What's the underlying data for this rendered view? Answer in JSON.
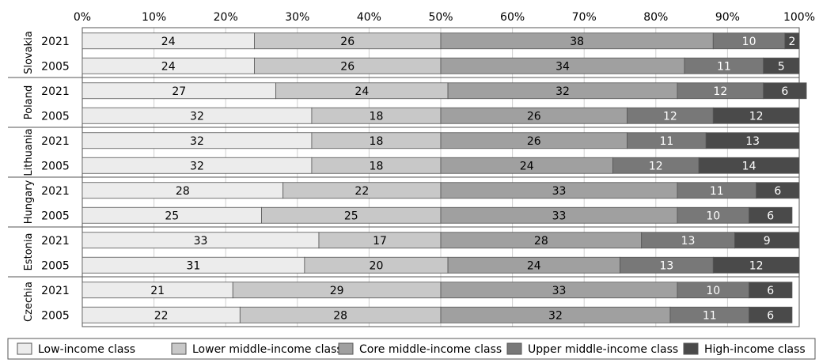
{
  "chart_data": {
    "type": "bar",
    "orientation": "horizontal",
    "stacked": true,
    "xlim": [
      0,
      100
    ],
    "x_ticks": [
      "0%",
      "10%",
      "20%",
      "30%",
      "40%",
      "50%",
      "60%",
      "70%",
      "80%",
      "90%",
      "100%"
    ],
    "grid": true,
    "legend_position": "bottom",
    "series": [
      {
        "name": "Low-income class",
        "color": "#ececec",
        "text_color": "#000000"
      },
      {
        "name": "Lower middle-income class",
        "color": "#c8c8c8",
        "text_color": "#000000"
      },
      {
        "name": "Core middle-income class",
        "color": "#a0a0a0",
        "text_color": "#000000"
      },
      {
        "name": "Upper middle-income class",
        "color": "#787878",
        "text_color": "#ffffff"
      },
      {
        "name": "High-income class",
        "color": "#4a4a4a",
        "text_color": "#ffffff"
      }
    ],
    "groups": [
      {
        "country": "Slovakia",
        "bars": [
          {
            "year": "2021",
            "values": [
              24,
              26,
              38,
              10,
              2
            ]
          },
          {
            "year": "2005",
            "values": [
              24,
              26,
              34,
              11,
              5
            ]
          }
        ]
      },
      {
        "country": "Poland",
        "bars": [
          {
            "year": "2021",
            "values": [
              27,
              24,
              32,
              12,
              6
            ]
          },
          {
            "year": "2005",
            "values": [
              32,
              18,
              26,
              12,
              12
            ]
          }
        ]
      },
      {
        "country": "Lithuania",
        "bars": [
          {
            "year": "2021",
            "values": [
              32,
              18,
              26,
              11,
              13
            ]
          },
          {
            "year": "2005",
            "values": [
              32,
              18,
              24,
              12,
              14
            ]
          }
        ]
      },
      {
        "country": "Hungary",
        "bars": [
          {
            "year": "2021",
            "values": [
              28,
              22,
              33,
              11,
              6
            ]
          },
          {
            "year": "2005",
            "values": [
              25,
              25,
              33,
              10,
              6
            ]
          }
        ]
      },
      {
        "country": "Estonia",
        "bars": [
          {
            "year": "2021",
            "values": [
              33,
              17,
              28,
              13,
              9
            ]
          },
          {
            "year": "2005",
            "values": [
              31,
              20,
              24,
              13,
              12
            ]
          }
        ]
      },
      {
        "country": "Czechia",
        "bars": [
          {
            "year": "2021",
            "values": [
              21,
              29,
              33,
              10,
              6
            ]
          },
          {
            "year": "2005",
            "values": [
              22,
              28,
              32,
              11,
              6
            ]
          }
        ]
      }
    ]
  }
}
